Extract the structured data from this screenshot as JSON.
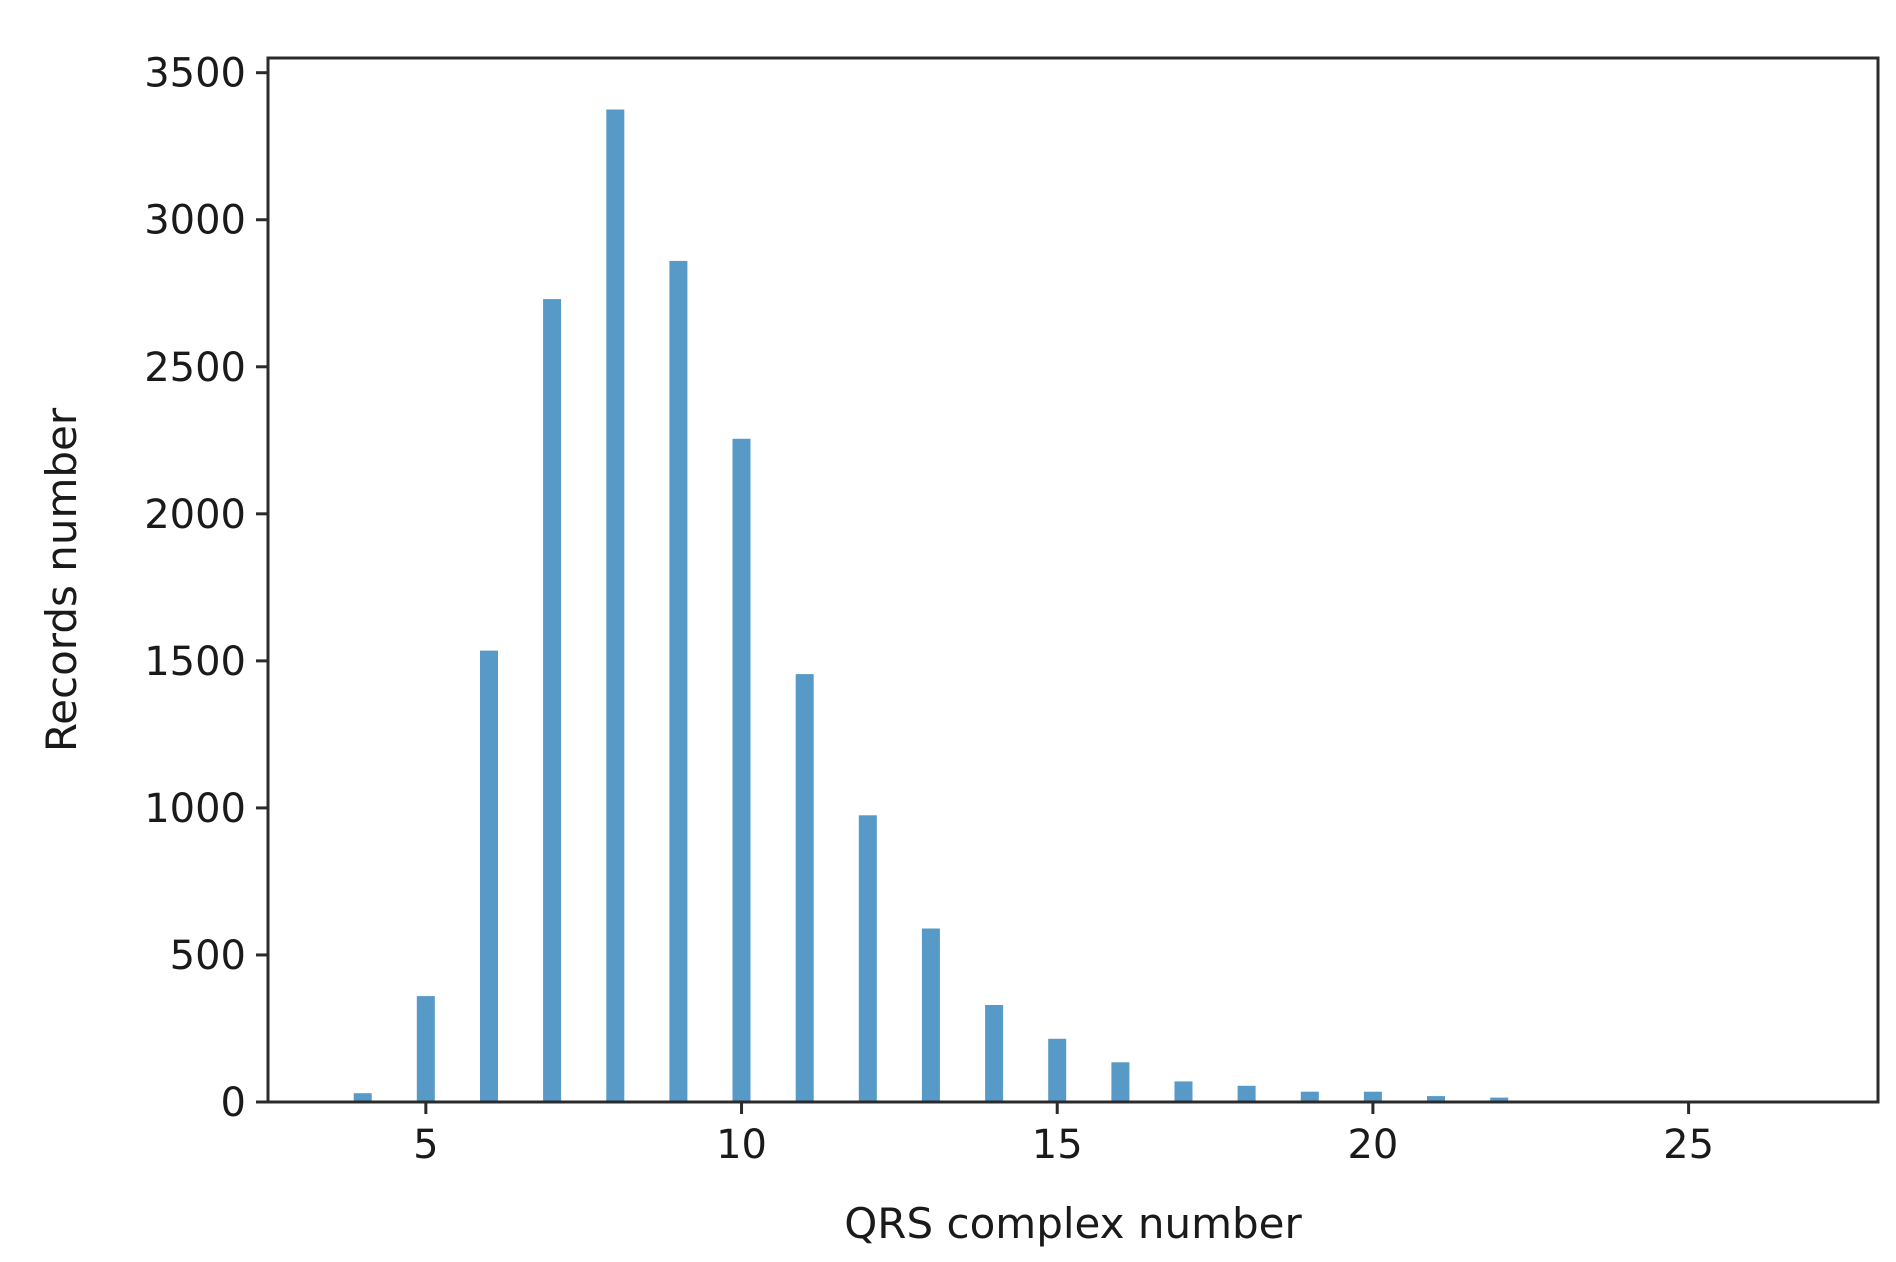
{
  "chart_data": {
    "type": "bar",
    "title": "",
    "xlabel": "QRS complex number",
    "ylabel": "Records number",
    "x": [
      4,
      5,
      6,
      7,
      8,
      9,
      10,
      11,
      12,
      13,
      14,
      15,
      16,
      17,
      18,
      19,
      20,
      21,
      22
    ],
    "values": [
      30,
      360,
      1535,
      2730,
      3375,
      2860,
      2255,
      1455,
      975,
      590,
      330,
      215,
      135,
      70,
      55,
      35,
      35,
      20,
      15
    ],
    "xlim": [
      2.5,
      28
    ],
    "ylim": [
      0,
      3550
    ],
    "xticks": [
      5,
      10,
      15,
      20,
      25
    ],
    "yticks": [
      0,
      500,
      1000,
      1500,
      2000,
      2500,
      3000,
      3500
    ],
    "grid": false,
    "bar_color": "#5799c7"
  }
}
